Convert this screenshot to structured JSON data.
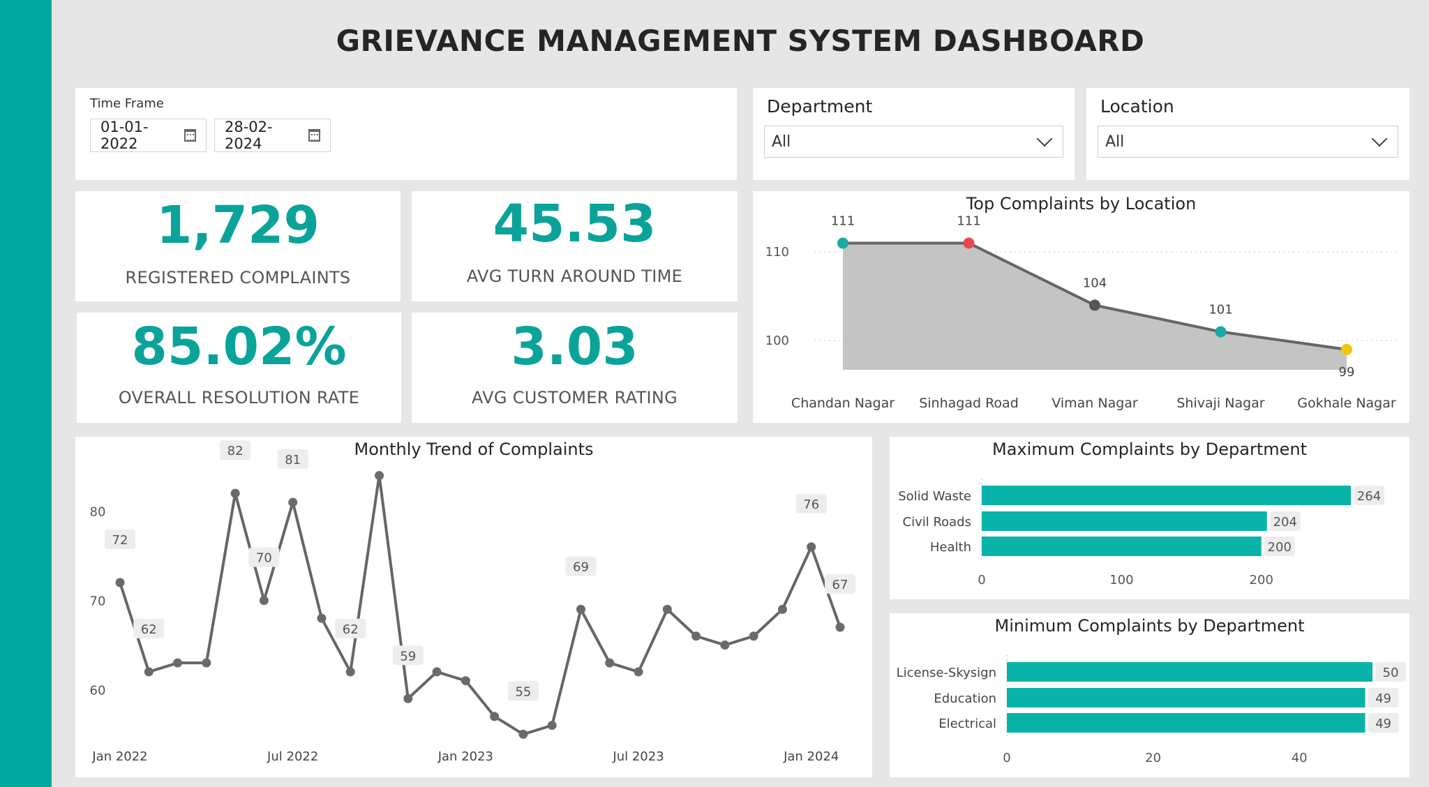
{
  "header": {
    "title": "GRIEVANCE MANAGEMENT SYSTEM DASHBOARD"
  },
  "filters": {
    "time_frame_label": "Time Frame",
    "start_date": "01-01-2022",
    "end_date": "28-02-2024",
    "department_label": "Department",
    "department_value": "All",
    "location_label": "Location",
    "location_value": "All"
  },
  "kpis": [
    {
      "value": "1,729",
      "label": "REGISTERED COMPLAINTS"
    },
    {
      "value": "45.53",
      "label": "AVG TURN AROUND TIME"
    },
    {
      "value": "85.02%",
      "label": "OVERALL RESOLUTION RATE"
    },
    {
      "value": "3.03",
      "label": "AVG CUSTOMER RATING"
    }
  ],
  "colors": {
    "accent": "#01a89e",
    "kpi": "#0aa39a",
    "bar": "#0ab3a8",
    "line": "#666666",
    "area": "#c4c4c4"
  },
  "chart_data": [
    {
      "type": "area",
      "title": "Top Complaints by Location",
      "categories": [
        "Chandan Nagar",
        "Sinhagad Road",
        "Viman Nagar",
        "Shivaji Nagar",
        "Gokhale Nagar"
      ],
      "values": [
        111,
        111,
        104,
        101,
        99
      ],
      "marker_colors": [
        "#1aa9a3",
        "#e9484f",
        "#555555",
        "#1aa9a3",
        "#f2c40f"
      ],
      "yticks": [
        100,
        110
      ],
      "ylim": [
        97.5,
        114.5
      ],
      "grid": true
    },
    {
      "type": "line",
      "title": "Monthly Trend of Complaints",
      "x": [
        "Jan 2022",
        "Feb 2022",
        "Mar 2022",
        "Apr 2022",
        "May 2022",
        "Jun 2022",
        "Jul 2022",
        "Aug 2022",
        "Sep 2022",
        "Oct 2022",
        "Nov 2022",
        "Dec 2022",
        "Jan 2023",
        "Feb 2023",
        "Mar 2023",
        "Apr 2023",
        "May 2023",
        "Jun 2023",
        "Jul 2023",
        "Aug 2023",
        "Sep 2023",
        "Oct 2023",
        "Nov 2023",
        "Dec 2023",
        "Jan 2024",
        "Feb 2024"
      ],
      "values": [
        72,
        62,
        63,
        63,
        82,
        70,
        81,
        68,
        62,
        84,
        59,
        62,
        61,
        57,
        55,
        56,
        69,
        63,
        62,
        69,
        66,
        65,
        66,
        69,
        76,
        67
      ],
      "labeled": [
        {
          "index": 0,
          "text": "72"
        },
        {
          "index": 1,
          "text": "62"
        },
        {
          "index": 4,
          "text": "82"
        },
        {
          "index": 5,
          "text": "70"
        },
        {
          "index": 6,
          "text": "81"
        },
        {
          "index": 8,
          "text": "62"
        },
        {
          "index": 10,
          "text": "59"
        },
        {
          "index": 14,
          "text": "55"
        },
        {
          "index": 16,
          "text": "69"
        },
        {
          "index": 24,
          "text": "76"
        },
        {
          "index": 25,
          "text": "67"
        }
      ],
      "xtick_labels": [
        "Jan 2022",
        "Jul 2022",
        "Jan 2023",
        "Jul 2023",
        "Jan 2024"
      ],
      "xtick_indices": [
        0,
        6,
        12,
        18,
        24
      ],
      "yticks": [
        60,
        70,
        80
      ],
      "ylim": [
        53,
        86
      ]
    },
    {
      "type": "bar",
      "orientation": "horizontal",
      "title": "Maximum Complaints by Department",
      "categories": [
        "Solid Waste",
        "Civil Roads",
        "Health"
      ],
      "values": [
        264,
        204,
        200
      ],
      "xticks": [
        0,
        100,
        200
      ],
      "xlim": [
        0,
        270
      ]
    },
    {
      "type": "bar",
      "orientation": "horizontal",
      "title": "Minimum Complaints by Department",
      "categories": [
        "License-Skysign",
        "Education",
        "Electrical"
      ],
      "values": [
        50,
        49,
        49
      ],
      "xticks": [
        0,
        20,
        40
      ],
      "xlim": [
        0,
        50
      ]
    }
  ]
}
